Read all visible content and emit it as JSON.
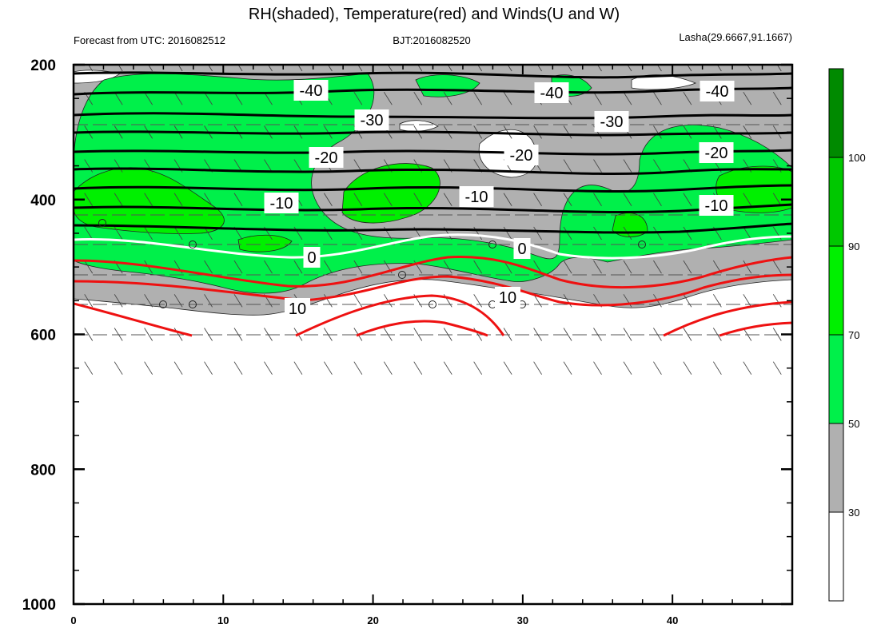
{
  "title": "RH(shaded), Temperature(red) and Winds(U and W)",
  "subtitle_left": "Forecast from UTC: 2016082512",
  "subtitle_center": "BJT:2016082520",
  "subtitle_right": "Lasha(29.6667,91.1667)",
  "chart_data": {
    "type": "contour",
    "xlim": [
      0,
      48
    ],
    "ylim": [
      1000,
      200
    ],
    "x_major_ticks": [
      0,
      10,
      20,
      30,
      40
    ],
    "x_tick_labels": [
      "0",
      "10",
      "20",
      "30",
      "40"
    ],
    "y_major_ticks": [
      200,
      400,
      600,
      800,
      1000
    ],
    "y_tick_labels": [
      "200",
      "400",
      "600",
      "800",
      "1000"
    ],
    "colorbar": {
      "levels": [
        "30",
        "50",
        "70",
        "90",
        "100"
      ],
      "colors": [
        "#ffffff",
        "#b0b0b0",
        "#00f04a",
        "#00f000",
        "#00c800",
        "#008a00"
      ]
    },
    "temperature_contour_labels": [
      "-40",
      "-40",
      "-40",
      "-30",
      "-30",
      "-20",
      "-20",
      "-20",
      "-10",
      "-10",
      "-10",
      "0",
      "0",
      "10",
      "10"
    ],
    "temperature_line_colors": {
      "negative": "#000000",
      "zero": "#ffffff",
      "positive": "#ee1111"
    }
  }
}
